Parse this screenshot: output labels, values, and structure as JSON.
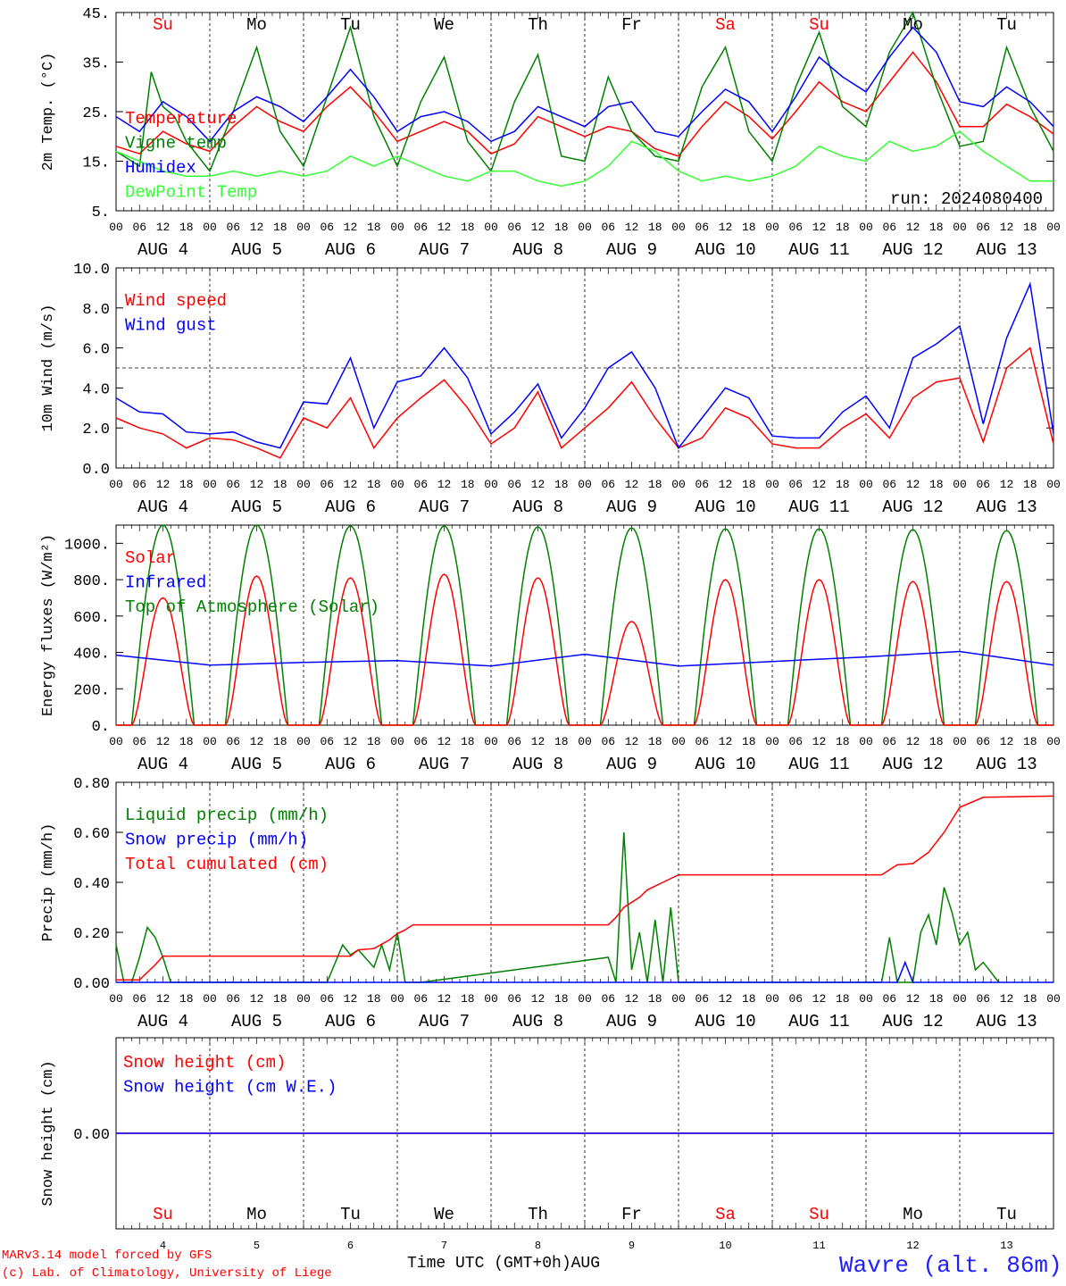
{
  "run_label": "run: 2024080400",
  "station": "Wavre (alt. 86m)",
  "credit_line1": "MARv3.14 model forced by GFS",
  "credit_line2": "(c) Lab. of Climatology, University of Liege",
  "x_title": "Time UTC (GMT+0h)AUG",
  "day_names": [
    "Su",
    "Mo",
    "Tu",
    "We",
    "Th",
    "Fr",
    "Sa",
    "Su",
    "Mo",
    "Tu"
  ],
  "weekend_flags": [
    true,
    false,
    false,
    false,
    false,
    false,
    true,
    true,
    false,
    false
  ],
  "day_numbers": [
    "4",
    "5",
    "6",
    "7",
    "8",
    "9",
    "10",
    "11",
    "12",
    "13"
  ],
  "date_labels": [
    "AUG  4",
    "AUG  5",
    "AUG  6",
    "AUG  7",
    "AUG  8",
    "AUG  9",
    "AUG 10",
    "AUG 11",
    "AUG 12",
    "AUG 13"
  ],
  "hour_labels": [
    "00",
    "06",
    "12",
    "18"
  ],
  "colors": {
    "red": "#ff0000",
    "blue": "#0000ff",
    "green": "#008000",
    "lightgreen": "#33ff33",
    "purple": "#800080"
  },
  "chart_data": [
    {
      "type": "line",
      "ylabel": "2m Temp. (°C)",
      "ylim": [
        5,
        45
      ],
      "ytick_labels": [
        "45.",
        "35.",
        "25.",
        "15.",
        "5."
      ],
      "x_unit": "hours since AUG 4 00 UTC",
      "series": [
        {
          "name": "Temperature",
          "color": "red",
          "x": [
            0,
            6,
            12,
            18,
            24,
            30,
            36,
            42,
            48,
            54,
            60,
            66,
            72,
            78,
            84,
            90,
            96,
            102,
            108,
            114,
            120,
            126,
            132,
            138,
            144,
            150,
            156,
            162,
            168,
            174,
            180,
            186,
            192,
            198,
            204,
            210,
            216,
            222,
            228,
            234,
            240
          ],
          "y": [
            18,
            16.5,
            21,
            18.5,
            17,
            22,
            26,
            23,
            21,
            26,
            30,
            25,
            19,
            21,
            23,
            21,
            16.5,
            18.5,
            24,
            22,
            20,
            22,
            21,
            17.5,
            16,
            22,
            27,
            24,
            19.5,
            25,
            31,
            27,
            25,
            31,
            37,
            31,
            22,
            22,
            26.5,
            24,
            20.5
          ]
        },
        {
          "name": "Vigne temp",
          "color": "green",
          "x": [
            0,
            6,
            9,
            12,
            15,
            18,
            24,
            30,
            36,
            42,
            48,
            54,
            60,
            66,
            72,
            78,
            84,
            90,
            96,
            102,
            108,
            114,
            120,
            126,
            132,
            138,
            144,
            150,
            156,
            162,
            168,
            174,
            180,
            186,
            192,
            198,
            204,
            210,
            216,
            222,
            228,
            234,
            240
          ],
          "y": [
            17,
            14,
            33,
            26,
            24,
            19,
            13,
            25,
            38,
            21,
            14,
            28,
            42,
            24,
            14,
            27,
            36,
            19,
            13,
            27,
            36.5,
            16,
            15,
            32,
            21,
            16,
            15,
            30,
            38,
            21,
            15,
            30,
            41,
            26,
            22,
            37,
            45,
            30,
            18,
            19,
            38,
            26,
            17
          ]
        },
        {
          "name": "Humidex",
          "color": "blue",
          "x": [
            0,
            6,
            12,
            18,
            24,
            30,
            36,
            42,
            48,
            54,
            60,
            66,
            72,
            78,
            84,
            90,
            96,
            102,
            108,
            114,
            120,
            126,
            132,
            138,
            144,
            150,
            156,
            162,
            168,
            174,
            180,
            186,
            192,
            198,
            204,
            210,
            216,
            222,
            228,
            234,
            240
          ],
          "y": [
            24,
            21,
            27,
            24,
            19,
            25,
            28,
            26,
            23,
            28,
            33.5,
            28,
            21,
            24,
            25,
            23,
            19,
            21,
            26,
            24,
            22,
            26,
            27,
            21,
            20,
            25,
            29.5,
            27,
            21,
            28,
            36,
            32,
            29,
            36,
            42,
            37,
            27,
            26,
            30,
            27,
            22
          ]
        },
        {
          "name": "DewPoint Temp",
          "color": "lightgreen",
          "x": [
            0,
            6,
            12,
            18,
            24,
            30,
            36,
            42,
            48,
            54,
            60,
            66,
            72,
            78,
            84,
            90,
            96,
            102,
            108,
            114,
            120,
            126,
            132,
            138,
            144,
            150,
            156,
            162,
            168,
            174,
            180,
            186,
            192,
            198,
            204,
            210,
            216,
            222,
            228,
            234,
            240
          ],
          "y": [
            17,
            15,
            13,
            12,
            12,
            13,
            12,
            13,
            12,
            13,
            16,
            14,
            16,
            14,
            12,
            11,
            13,
            13,
            11,
            10,
            11,
            14,
            19,
            17,
            13,
            11,
            12,
            11,
            12,
            14,
            18,
            16,
            15,
            19,
            17,
            18,
            21,
            17,
            14,
            11,
            11
          ]
        }
      ]
    },
    {
      "type": "line",
      "ylabel": "10m Wind (m/s)",
      "ylim": [
        0,
        10
      ],
      "ytick_labels": [
        "10.0",
        "8.0",
        "6.0",
        "4.0",
        "2.0",
        "0.0"
      ],
      "reference_line": 5,
      "series": [
        {
          "name": "Wind speed",
          "color": "red",
          "x": [
            0,
            6,
            12,
            18,
            24,
            30,
            36,
            42,
            48,
            54,
            60,
            66,
            72,
            78,
            84,
            90,
            96,
            102,
            108,
            114,
            120,
            126,
            132,
            138,
            144,
            150,
            156,
            162,
            168,
            174,
            180,
            186,
            192,
            198,
            204,
            210,
            216,
            222,
            228,
            234,
            240
          ],
          "y": [
            2.5,
            2,
            1.7,
            1,
            1.5,
            1.4,
            1,
            0.5,
            2.5,
            2,
            3.5,
            1,
            2.5,
            3.5,
            4.4,
            3,
            1.2,
            2,
            3.8,
            1,
            2,
            3,
            4.3,
            2.5,
            1,
            1.5,
            3,
            2.5,
            1.2,
            1,
            1,
            2,
            2.7,
            1.5,
            3.5,
            4.3,
            4.5,
            1.3,
            5,
            6,
            1.2
          ]
        },
        {
          "name": "Wind gust",
          "color": "blue",
          "x": [
            0,
            6,
            12,
            18,
            24,
            30,
            36,
            42,
            48,
            54,
            60,
            66,
            72,
            78,
            84,
            90,
            96,
            102,
            108,
            114,
            120,
            126,
            132,
            138,
            144,
            150,
            156,
            162,
            168,
            174,
            180,
            186,
            192,
            198,
            204,
            210,
            216,
            222,
            228,
            234,
            240
          ],
          "y": [
            3.5,
            2.8,
            2.7,
            1.8,
            1.7,
            1.8,
            1.3,
            1,
            3.3,
            3.2,
            5.5,
            2,
            4.3,
            4.6,
            6,
            4.5,
            1.7,
            2.8,
            4.2,
            1.5,
            3,
            5,
            5.8,
            4,
            1,
            2.5,
            4,
            3.5,
            1.6,
            1.5,
            1.5,
            2.8,
            3.6,
            2,
            5.5,
            6.2,
            7.1,
            2.2,
            6.5,
            9.2,
            1.7
          ]
        }
      ]
    },
    {
      "type": "line",
      "ylabel": "Energy fluxes (W/m²)",
      "ylim": [
        0,
        1100
      ],
      "ytick_labels": [
        "1000.",
        "800.",
        "600.",
        "400.",
        "200.",
        "0."
      ],
      "series": [
        {
          "name": "Solar",
          "color": "red",
          "peaks": [
            700,
            820,
            810,
            830,
            810,
            570,
            800,
            800,
            790,
            790
          ]
        },
        {
          "name": "Infrared",
          "color": "blue",
          "x": [
            0,
            24,
            48,
            72,
            96,
            120,
            144,
            168,
            192,
            216,
            240
          ],
          "y": [
            385,
            330,
            345,
            355,
            325,
            390,
            325,
            350,
            375,
            405,
            330
          ]
        },
        {
          "name": "Top of Atmosphere (Solar)",
          "color": "green",
          "peaks": [
            1100,
            1100,
            1095,
            1095,
            1090,
            1085,
            1080,
            1080,
            1075,
            1070
          ]
        }
      ]
    },
    {
      "type": "line",
      "ylabel": "Precip (mm/h)",
      "ylim": [
        0,
        0.8
      ],
      "ytick_labels": [
        "0.80",
        "0.60",
        "0.40",
        "0.20",
        "0.00"
      ],
      "series": [
        {
          "name": "Liquid precip (mm/h)",
          "color": "green",
          "x": [
            0,
            2,
            4,
            6,
            8,
            10,
            12,
            14,
            54,
            58,
            60,
            62,
            66,
            68,
            70,
            72,
            74,
            76,
            78,
            126,
            128,
            130,
            132,
            134,
            136,
            138,
            140,
            142,
            144,
            196,
            198,
            200,
            204,
            206,
            208,
            210,
            212,
            214,
            216,
            218,
            220,
            222,
            226
          ],
          "y": [
            0.15,
            0,
            0,
            0.1,
            0.22,
            0.18,
            0.1,
            0,
            0,
            0.15,
            0.11,
            0.13,
            0.06,
            0.15,
            0.05,
            0.2,
            0,
            0,
            0,
            0.1,
            0,
            0.6,
            0.05,
            0.2,
            0,
            0.25,
            0,
            0.3,
            0,
            0,
            0.18,
            0,
            0,
            0.2,
            0.27,
            0.15,
            0.38,
            0.28,
            0.15,
            0.2,
            0.05,
            0.08,
            0
          ]
        },
        {
          "name": "Snow precip (mm/h)",
          "color": "blue",
          "x": [
            0,
            200,
            202,
            204,
            240
          ],
          "y": [
            0,
            0,
            0.08,
            0,
            0
          ]
        },
        {
          "name": "Total cumulated (cm)",
          "color": "red",
          "x": [
            0,
            6,
            10,
            12,
            60,
            62,
            66,
            70,
            72,
            74,
            76,
            126,
            128,
            130,
            134,
            136,
            140,
            144,
            196,
            200,
            204,
            208,
            212,
            216,
            222,
            240
          ],
          "y": [
            0.01,
            0.01,
            0.07,
            0.105,
            0.105,
            0.13,
            0.135,
            0.17,
            0.195,
            0.21,
            0.23,
            0.23,
            0.26,
            0.3,
            0.34,
            0.37,
            0.4,
            0.43,
            0.43,
            0.47,
            0.475,
            0.52,
            0.6,
            0.7,
            0.74,
            0.745
          ]
        }
      ]
    },
    {
      "type": "line",
      "ylabel": "Snow height (cm)",
      "ytick_labels": [
        "0.00"
      ],
      "series": [
        {
          "name": "Snow height (cm)",
          "color": "red",
          "x": [
            0,
            240
          ],
          "y": [
            0,
            0
          ]
        },
        {
          "name": "Snow height (cm W.E.)",
          "color": "blue",
          "x": [
            0,
            240
          ],
          "y": [
            0,
            0
          ]
        }
      ]
    }
  ]
}
